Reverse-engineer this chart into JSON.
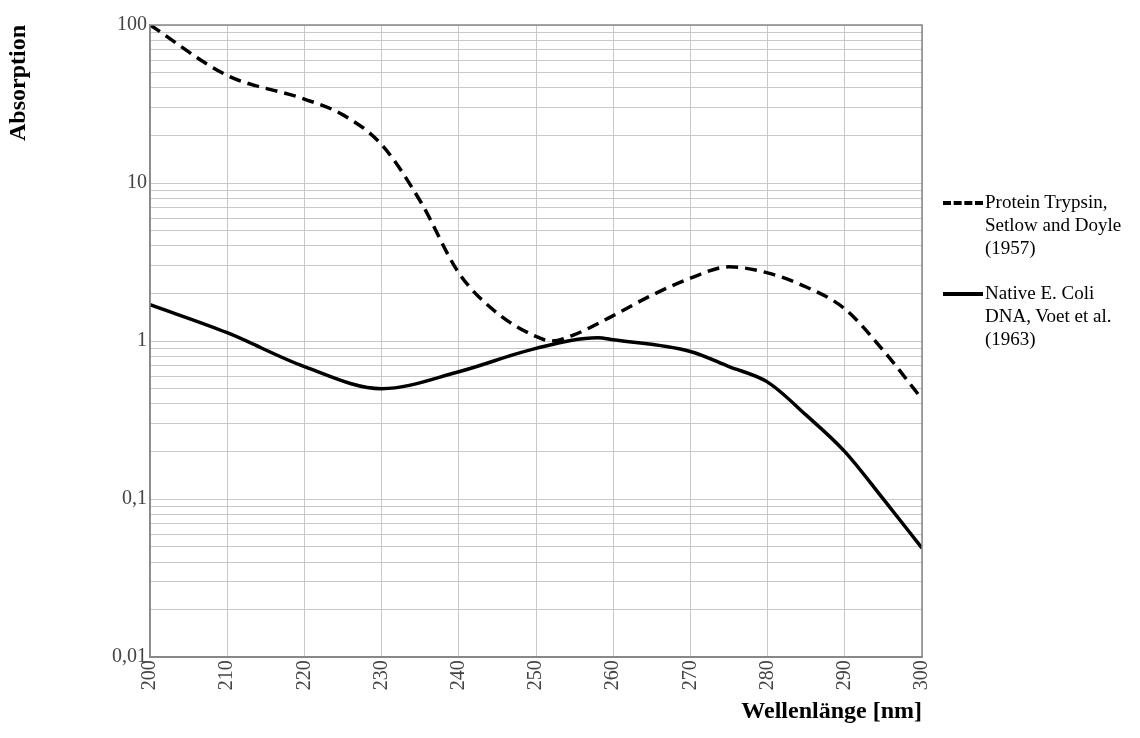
{
  "chart_data": {
    "type": "line",
    "xlabel": "Wellenlänge [nm]",
    "ylabel": "Absorption",
    "log": "y",
    "grid": true,
    "legend": "right",
    "marker": "none",
    "xlim": [
      200,
      300
    ],
    "xticks": [
      200,
      210,
      220,
      230,
      240,
      250,
      260,
      270,
      280,
      290,
      300
    ],
    "ylim": [
      0.01,
      100
    ],
    "yticks": [
      {
        "value": 0.01,
        "label": "0,01"
      },
      {
        "value": 0.02,
        "label": null
      },
      {
        "value": 0.03,
        "label": null
      },
      {
        "value": 0.04,
        "label": null
      },
      {
        "value": 0.05,
        "label": null
      },
      {
        "value": 0.06,
        "label": null
      },
      {
        "value": 0.07,
        "label": null
      },
      {
        "value": 0.08,
        "label": null
      },
      {
        "value": 0.09,
        "label": null
      },
      {
        "value": 0.1,
        "label": "0,1"
      },
      {
        "value": 0.2,
        "label": null
      },
      {
        "value": 0.3,
        "label": null
      },
      {
        "value": 0.4,
        "label": null
      },
      {
        "value": 0.5,
        "label": null
      },
      {
        "value": 0.6,
        "label": null
      },
      {
        "value": 0.7,
        "label": null
      },
      {
        "value": 0.8,
        "label": null
      },
      {
        "value": 0.9,
        "label": null
      },
      {
        "value": 1,
        "label": "1"
      },
      {
        "value": 2,
        "label": null
      },
      {
        "value": 3,
        "label": null
      },
      {
        "value": 4,
        "label": null
      },
      {
        "value": 5,
        "label": null
      },
      {
        "value": 6,
        "label": null
      },
      {
        "value": 7,
        "label": null
      },
      {
        "value": 8,
        "label": null
      },
      {
        "value": 9,
        "label": null
      },
      {
        "value": 10,
        "label": "10"
      },
      {
        "value": 20,
        "label": null
      },
      {
        "value": 30,
        "label": null
      },
      {
        "value": 40,
        "label": null
      },
      {
        "value": 50,
        "label": null
      },
      {
        "value": 60,
        "label": null
      },
      {
        "value": 70,
        "label": null
      },
      {
        "value": 80,
        "label": null
      },
      {
        "value": 90,
        "label": null
      },
      {
        "value": 100,
        "label": "100"
      }
    ],
    "series": [
      {
        "name": "Protein Trypsin, Setlow and Doyle (1957)",
        "color": "#000000",
        "line_style": "dashed",
        "x": [
          200,
          210,
          220,
          225,
          230,
          235,
          240,
          245,
          250,
          252,
          255,
          260,
          265,
          270,
          275,
          280,
          285,
          290,
          295,
          300
        ],
        "values": [
          100,
          48,
          34,
          27,
          17.5,
          7.7,
          2.7,
          1.5,
          1.07,
          1.0,
          1.1,
          1.45,
          1.95,
          2.5,
          2.95,
          2.7,
          2.2,
          1.6,
          0.87,
          0.43
        ]
      },
      {
        "name": "Native E. Coli DNA, Voet et al. (1963)",
        "color": "#000000",
        "line_style": "solid",
        "x": [
          200,
          210,
          220,
          230,
          240,
          250,
          258,
          260,
          270,
          275,
          280,
          285,
          290,
          295,
          300
        ],
        "values": [
          1.7,
          1.13,
          0.69,
          0.5,
          0.64,
          0.9,
          1.05,
          1.02,
          0.86,
          0.69,
          0.55,
          0.34,
          0.2,
          0.1,
          0.049
        ]
      }
    ]
  }
}
